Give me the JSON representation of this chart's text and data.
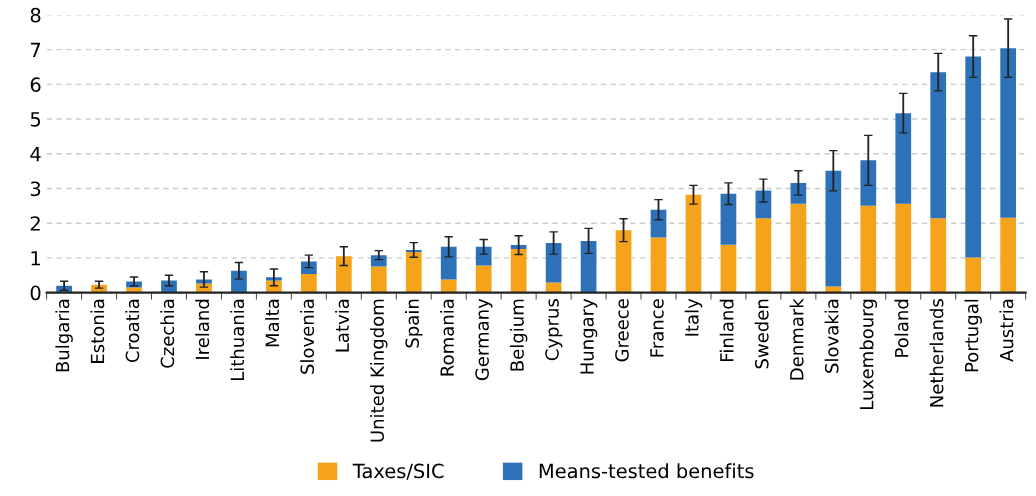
{
  "chart_data": {
    "type": "bar",
    "stacked": true,
    "categories": [
      "Bulgaria",
      "Estonia",
      "Croatia",
      "Czechia",
      "Ireland",
      "Lithuania",
      "Malta",
      "Slovenia",
      "Latvia",
      "United Kingdom",
      "Spain",
      "Romania",
      "Germany",
      "Belgium",
      "Cyprus",
      "Hungary",
      "Greece",
      "France",
      "Italy",
      "Finland",
      "Sweden",
      "Denmark",
      "Slovakia",
      "Luxembourg",
      "Poland",
      "Netherlands",
      "Portugal",
      "Austria"
    ],
    "series": [
      {
        "name": "Taxes/SIC",
        "color": "#f5a31a",
        "values": [
          0,
          0.23,
          0.15,
          0,
          0.26,
          0,
          0.35,
          0.54,
          1.05,
          0.75,
          1.17,
          0.38,
          0.78,
          1.26,
          0.29,
          0,
          1.8,
          1.59,
          2.82,
          1.38,
          2.14,
          2.56,
          0.18,
          2.5,
          2.56,
          2.14,
          1.01,
          2.16
        ]
      },
      {
        "name": "Means-tested benefits",
        "color": "#2d72b8",
        "values": [
          0.2,
          0,
          0.17,
          0.35,
          0.12,
          0.63,
          0.09,
          0.36,
          0,
          0.33,
          0.06,
          0.94,
          0.54,
          0.11,
          1.14,
          1.49,
          0,
          0.8,
          0,
          1.47,
          0.8,
          0.6,
          3.33,
          1.31,
          2.61,
          4.21,
          5.79,
          4.88
        ],
        "errors": [
          0.13,
          0.1,
          0.13,
          0.15,
          0.22,
          0.24,
          0.24,
          0.18,
          0.27,
          0.13,
          0.21,
          0.29,
          0.21,
          0.27,
          0.32,
          0.36,
          0.33,
          0.29,
          0.27,
          0.31,
          0.33,
          0.35,
          0.58,
          0.72,
          0.57,
          0.54,
          0.6,
          0.84
        ]
      }
    ],
    "ylim": [
      0,
      8
    ],
    "yticks": [
      0,
      1,
      2,
      3,
      4,
      5,
      6,
      7,
      8
    ],
    "grid": "y",
    "legend": "bottom"
  }
}
